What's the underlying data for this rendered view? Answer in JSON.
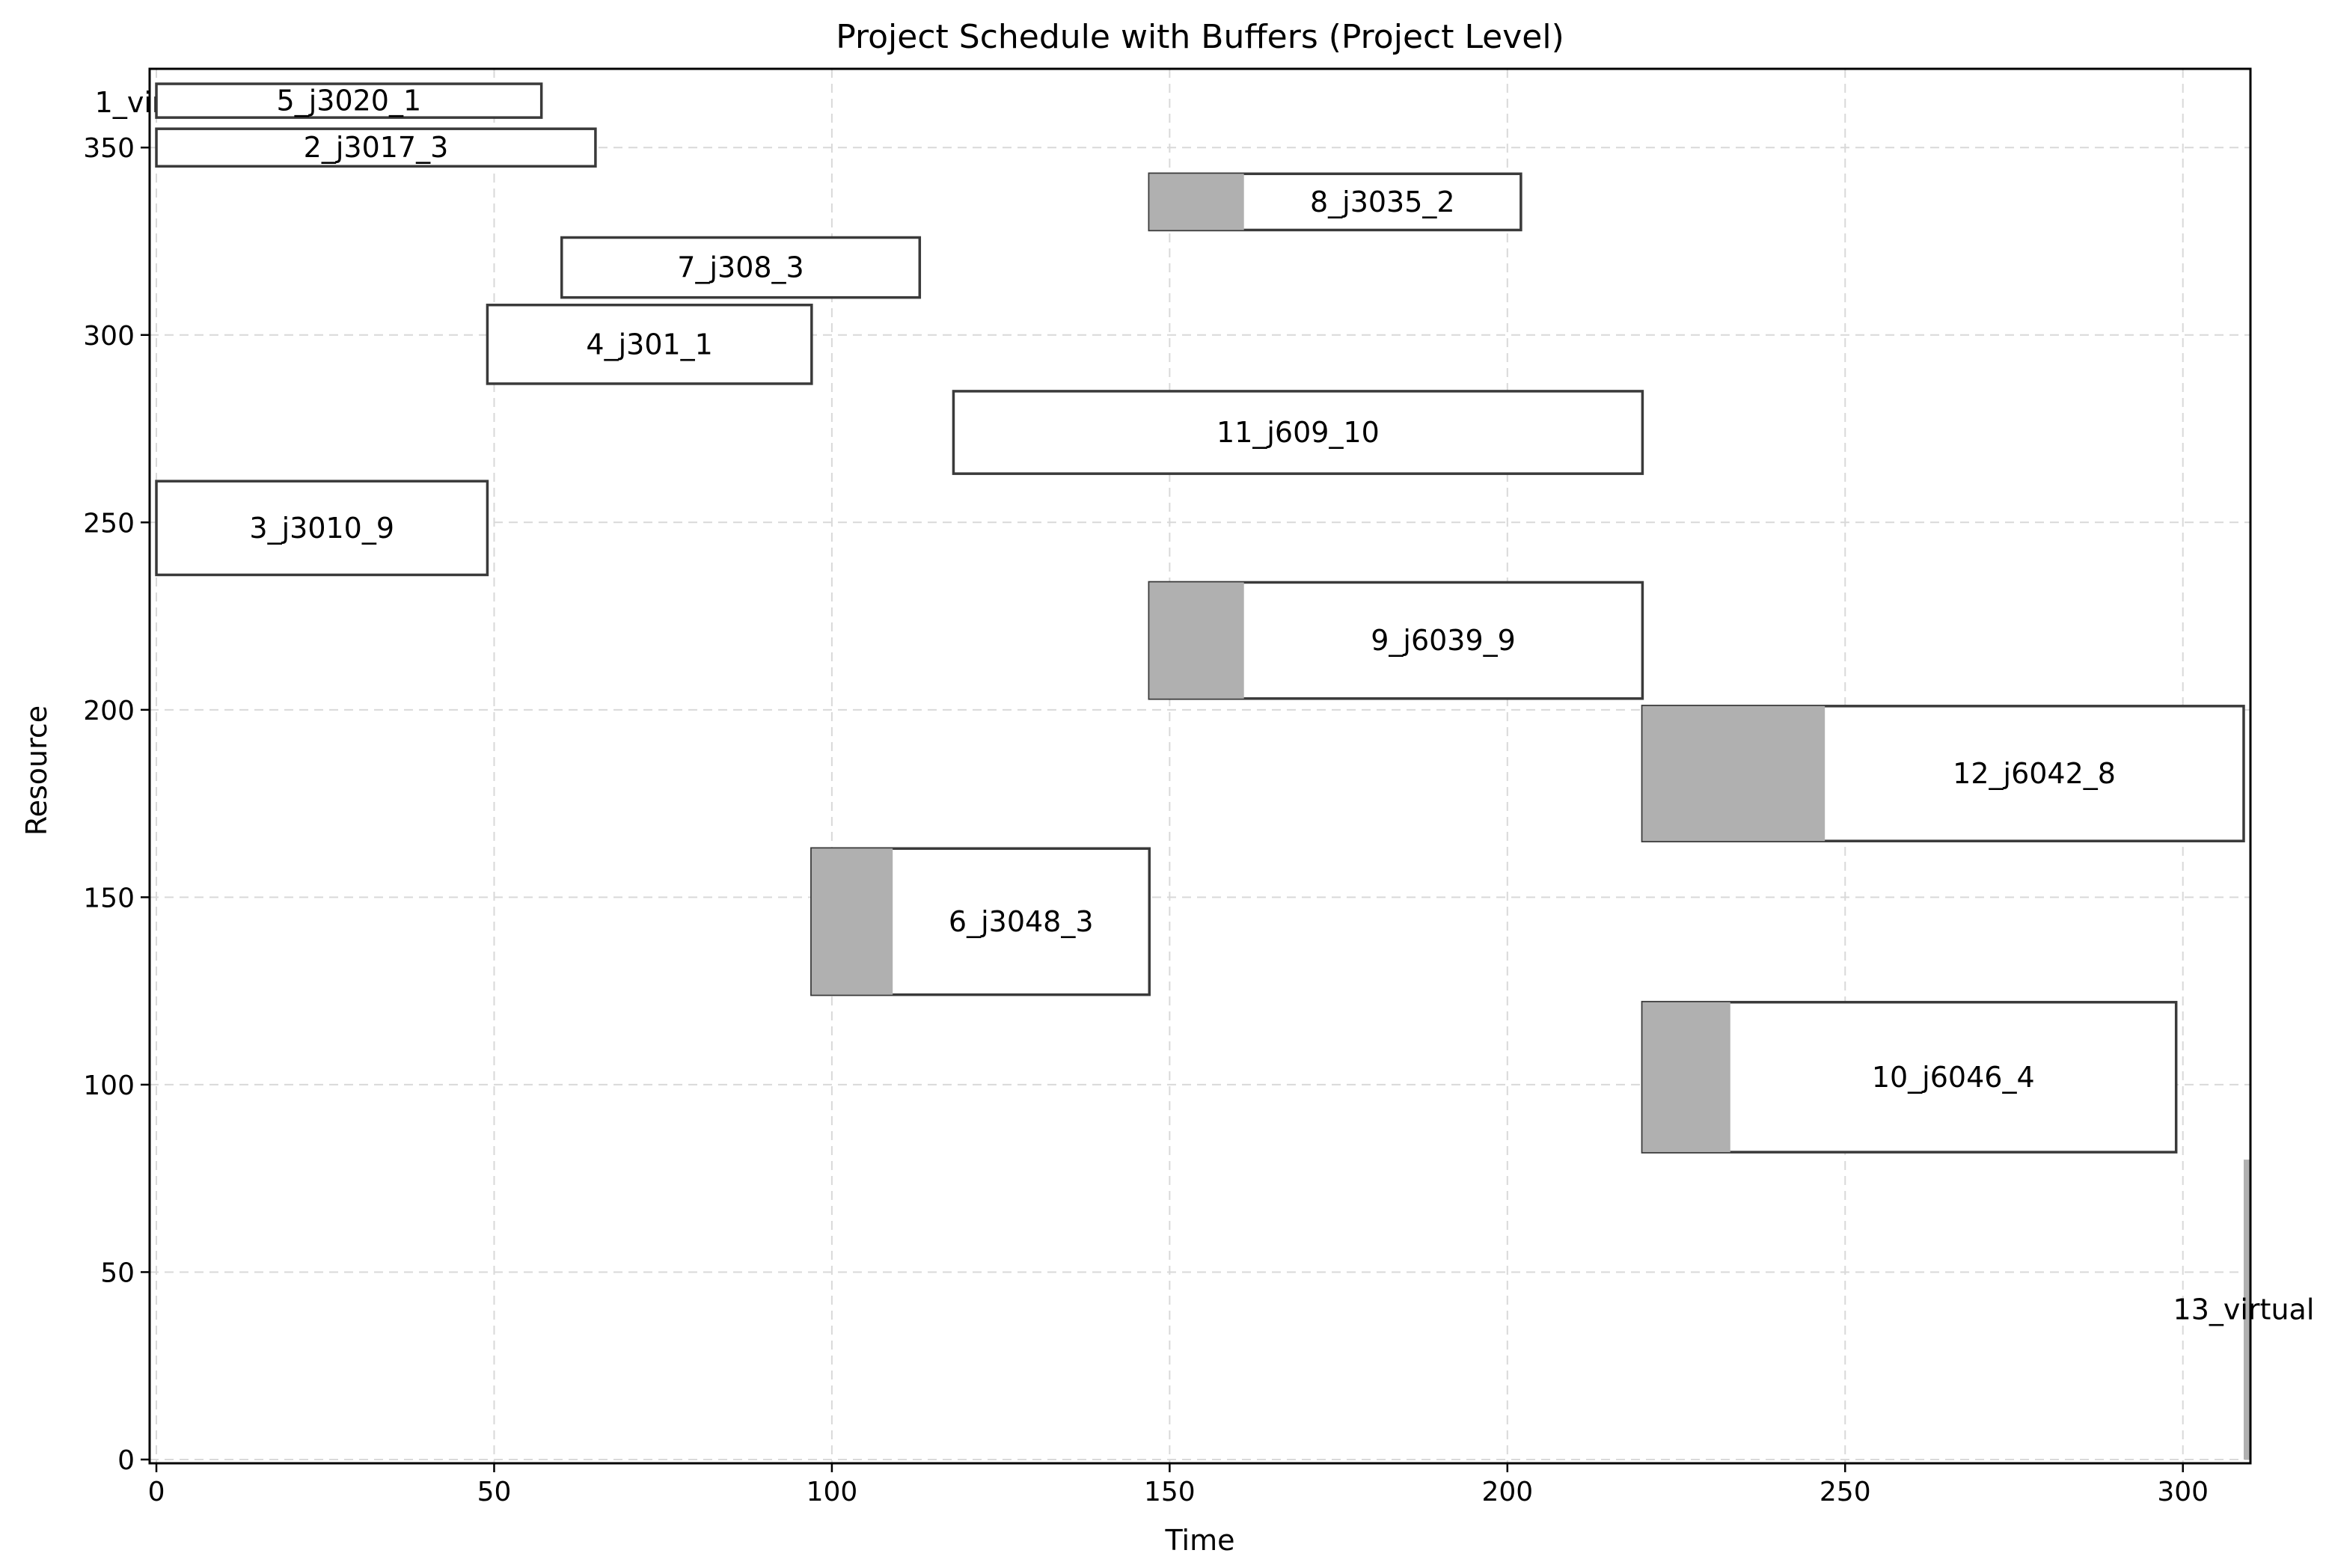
{
  "chart_data": {
    "type": "gantt",
    "title": "Project Schedule with Buffers (Project Level)",
    "xlabel": "Time",
    "ylabel": "Resource",
    "xlim": [
      -1,
      310
    ],
    "ylim": [
      -1,
      371
    ],
    "xticks": [
      0,
      50,
      100,
      150,
      200,
      250,
      300
    ],
    "yticks": [
      0,
      50,
      100,
      150,
      200,
      250,
      300,
      350
    ],
    "grid": true,
    "tasks": [
      {
        "label": "1_virtual",
        "start": 0,
        "end": 0,
        "y0": 357,
        "y1": 367,
        "buffer_end": null
      },
      {
        "label": "5_j3020_1",
        "start": 0,
        "end": 57,
        "y0": 358,
        "y1": 367,
        "buffer_end": null
      },
      {
        "label": "2_j3017_3",
        "start": 0,
        "end": 65,
        "y0": 345,
        "y1": 355,
        "buffer_end": null
      },
      {
        "label": "8_j3035_2",
        "start": 147,
        "end": 202,
        "y0": 328,
        "y1": 343,
        "buffer_end": 161
      },
      {
        "label": "7_j308_3",
        "start": 60,
        "end": 113,
        "y0": 310,
        "y1": 326,
        "buffer_end": null
      },
      {
        "label": "4_j301_1",
        "start": 49,
        "end": 97,
        "y0": 287,
        "y1": 308,
        "buffer_end": null
      },
      {
        "label": "11_j609_10",
        "start": 118,
        "end": 220,
        "y0": 263,
        "y1": 285,
        "buffer_end": null
      },
      {
        "label": "3_j3010_9",
        "start": 0,
        "end": 49,
        "y0": 236,
        "y1": 261,
        "buffer_end": null
      },
      {
        "label": "9_j6039_9",
        "start": 147,
        "end": 220,
        "y0": 203,
        "y1": 234,
        "buffer_end": 161
      },
      {
        "label": "12_j6042_8",
        "start": 220,
        "end": 309,
        "y0": 165,
        "y1": 201,
        "buffer_end": 247
      },
      {
        "label": "6_j3048_3",
        "start": 97,
        "end": 147,
        "y0": 124,
        "y1": 163,
        "buffer_end": 109
      },
      {
        "label": "10_j6046_4",
        "start": 220,
        "end": 299,
        "y0": 82,
        "y1": 122,
        "buffer_end": 233
      },
      {
        "label": "13_virtual",
        "start": 309,
        "end": 310,
        "y0": 0,
        "y1": 80,
        "buffer_end": 310
      }
    ]
  }
}
